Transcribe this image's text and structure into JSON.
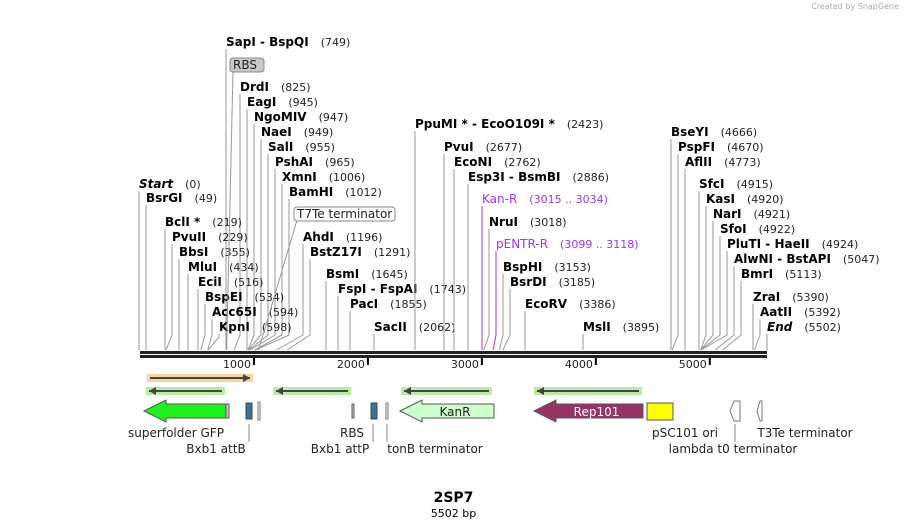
{
  "watermark": "Created by SnapGene",
  "title": "2SP7",
  "length_label": "5502 bp",
  "sequence_length": 5502,
  "ruler_ticks": [
    "1000",
    "2000",
    "3000",
    "4000",
    "5000"
  ],
  "sites": [
    {
      "name": "SapI  - BspQI",
      "pos": "(749)",
      "bp": 749
    },
    {
      "name": "DrdI",
      "pos": "(825)",
      "bp": 825
    },
    {
      "name": "EagI",
      "pos": "(945)",
      "bp": 945
    },
    {
      "name": "NgoMIV",
      "pos": "(947)",
      "bp": 947
    },
    {
      "name": "NaeI",
      "pos": "(949)",
      "bp": 949
    },
    {
      "name": "SalI",
      "pos": "(955)",
      "bp": 955
    },
    {
      "name": "PshAI",
      "pos": "(965)",
      "bp": 965
    },
    {
      "name": "XmnI",
      "pos": "(1006)",
      "bp": 1006
    },
    {
      "name": "BamHI",
      "pos": "(1012)",
      "bp": 1012
    },
    {
      "name": "AhdI",
      "pos": "(1196)",
      "bp": 1196
    },
    {
      "name": "BstZ17I",
      "pos": "(1291)",
      "bp": 1291
    },
    {
      "name": "Start",
      "pos": "(0)",
      "bp": 0,
      "italic": true
    },
    {
      "name": "BsrGI",
      "pos": "(49)",
      "bp": 49
    },
    {
      "name": "BclI *",
      "pos": "(219)",
      "bp": 219
    },
    {
      "name": "PvuII",
      "pos": "(229)",
      "bp": 229
    },
    {
      "name": "BbsI",
      "pos": "(355)",
      "bp": 355
    },
    {
      "name": "MluI",
      "pos": "(434)",
      "bp": 434
    },
    {
      "name": "EciI",
      "pos": "(516)",
      "bp": 516
    },
    {
      "name": "BspEI",
      "pos": "(534)",
      "bp": 534
    },
    {
      "name": "Acc65I",
      "pos": "(594)",
      "bp": 594
    },
    {
      "name": "KpnI",
      "pos": "(598)",
      "bp": 598
    },
    {
      "name": "BsmI",
      "pos": "(1645)",
      "bp": 1645
    },
    {
      "name": "FspI  - FspAI",
      "pos": "(1743)",
      "bp": 1743
    },
    {
      "name": "PacI",
      "pos": "(1855)",
      "bp": 1855
    },
    {
      "name": "SacII",
      "pos": "(2062)",
      "bp": 2062
    },
    {
      "name": "PpuMI *  - EcoO109I *",
      "pos": "(2423)",
      "bp": 2423
    },
    {
      "name": "PvuI",
      "pos": "(2677)",
      "bp": 2677
    },
    {
      "name": "EcoNI",
      "pos": "(2762)",
      "bp": 2762
    },
    {
      "name": "Esp3I  - BsmBI",
      "pos": "(2886)",
      "bp": 2886
    },
    {
      "name": "Kan-R",
      "pos": "(3015 .. 3034)",
      "bp": 3015,
      "primer": true
    },
    {
      "name": "NruI",
      "pos": "(3018)",
      "bp": 3018
    },
    {
      "name": "pENTR-R",
      "pos": "(3099 .. 3118)",
      "bp": 3099,
      "primer": true
    },
    {
      "name": "BspHI",
      "pos": "(3153)",
      "bp": 3153
    },
    {
      "name": "BsrDI",
      "pos": "(3185)",
      "bp": 3185
    },
    {
      "name": "EcoRV",
      "pos": "(3386)",
      "bp": 3386
    },
    {
      "name": "MslI",
      "pos": "(3895)",
      "bp": 3895
    },
    {
      "name": "BseYI",
      "pos": "(4666)",
      "bp": 4666
    },
    {
      "name": "PspFI",
      "pos": "(4670)",
      "bp": 4670
    },
    {
      "name": "AflII",
      "pos": "(4773)",
      "bp": 4773
    },
    {
      "name": "SfcI",
      "pos": "(4915)",
      "bp": 4915
    },
    {
      "name": "KasI",
      "pos": "(4920)",
      "bp": 4920
    },
    {
      "name": "NarI",
      "pos": "(4921)",
      "bp": 4921
    },
    {
      "name": "SfoI",
      "pos": "(4922)",
      "bp": 4922
    },
    {
      "name": "PluTI  - HaeII",
      "pos": "(4924)",
      "bp": 4924
    },
    {
      "name": "AlwNI  - BstAPI",
      "pos": "(5047)",
      "bp": 5047
    },
    {
      "name": "BmrI",
      "pos": "(5113)",
      "bp": 5113
    },
    {
      "name": "ZraI",
      "pos": "(5390)",
      "bp": 5390
    },
    {
      "name": "AatII",
      "pos": "(5392)",
      "bp": 5392
    },
    {
      "name": "End",
      "pos": "(5502)",
      "bp": 5502,
      "italic": true
    }
  ],
  "boxed_labels": [
    {
      "name": "RBS",
      "bp": 760
    },
    {
      "name": "T7Te terminator",
      "bp": 1040
    }
  ],
  "features": [
    {
      "name": "superfolder GFP",
      "color": "#1ef21e"
    },
    {
      "name": "Bxb1 attB",
      "color": "#2f7a96"
    },
    {
      "name": "RBS",
      "color": "#cccccc"
    },
    {
      "name": "Bxb1 attP",
      "color": "#2f7a96"
    },
    {
      "name": "tonB terminator",
      "color": "#ffffff"
    },
    {
      "name": "KanR",
      "color": "#ccffcc"
    },
    {
      "name": "Rep101",
      "color": "#993366"
    },
    {
      "name": "pSC101 ori",
      "color": "#ffff00"
    },
    {
      "name": "lambda t0 terminator",
      "color": "#ffffff"
    },
    {
      "name": "T3Te terminator",
      "color": "#ffffff"
    }
  ],
  "colors": {
    "primer": "#9933ff",
    "primer_orange": "#f7c88a",
    "primer_green": "#a6e88a"
  }
}
